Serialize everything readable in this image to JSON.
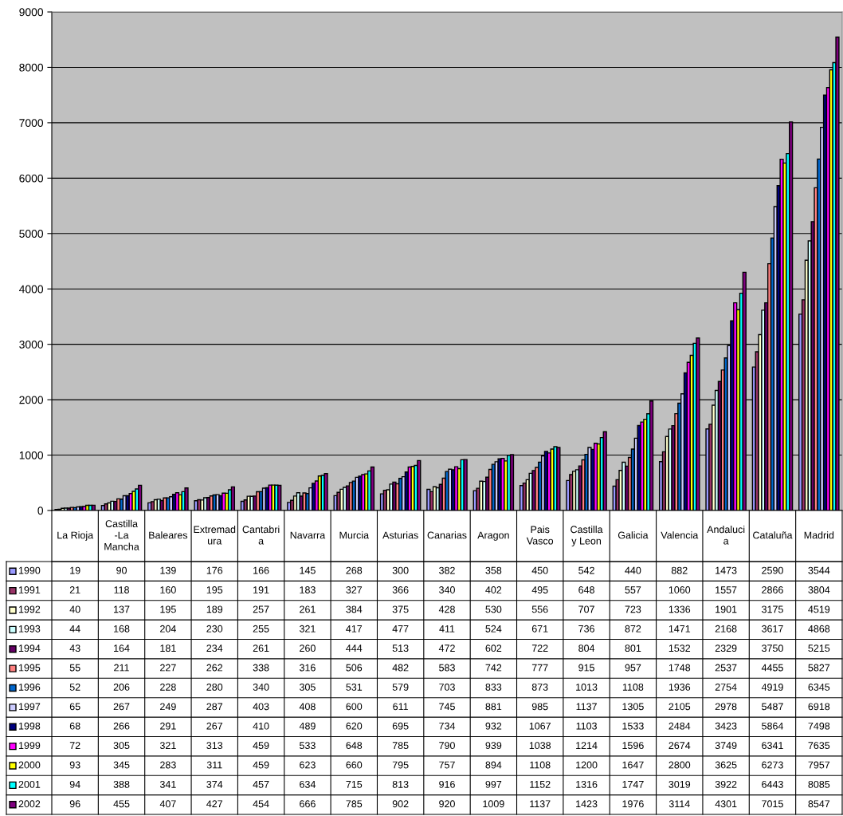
{
  "chart_data": {
    "type": "bar",
    "categories": [
      "La Rioja",
      "Castilla-La Mancha",
      "Baleares",
      "Extremadura",
      "Cantabria",
      "Navarra",
      "Murcia",
      "Asturias",
      "Canarias",
      "Aragon",
      "Pais Vasco",
      "Castilla y Leon",
      "Galicia",
      "Valencia",
      "Andalucia",
      "Cataluña",
      "Madrid"
    ],
    "series": [
      {
        "name": "1990",
        "color": "#9999ff",
        "values": [
          19,
          90,
          139,
          176,
          166,
          145,
          268,
          300,
          382,
          358,
          450,
          542,
          440,
          882,
          1473,
          2590,
          3544
        ]
      },
      {
        "name": "1991",
        "color": "#993366",
        "values": [
          21,
          118,
          160,
          195,
          191,
          183,
          327,
          366,
          340,
          402,
          495,
          648,
          557,
          1060,
          1557,
          2866,
          3804
        ]
      },
      {
        "name": "1992",
        "color": "#ffffcc",
        "values": [
          40,
          137,
          195,
          189,
          257,
          261,
          384,
          375,
          428,
          530,
          556,
          707,
          723,
          1336,
          1901,
          3175,
          4519
        ]
      },
      {
        "name": "1993",
        "color": "#ccffff",
        "values": [
          44,
          168,
          204,
          230,
          255,
          321,
          417,
          477,
          411,
          524,
          671,
          736,
          872,
          1471,
          2168,
          3617,
          4868
        ]
      },
      {
        "name": "1994",
        "color": "#660066",
        "values": [
          43,
          164,
          181,
          234,
          261,
          260,
          444,
          513,
          472,
          602,
          722,
          804,
          801,
          1532,
          2329,
          3750,
          5215
        ]
      },
      {
        "name": "1995",
        "color": "#ff8080",
        "values": [
          55,
          211,
          227,
          262,
          338,
          316,
          506,
          482,
          583,
          742,
          777,
          915,
          957,
          1748,
          2537,
          4455,
          5827
        ]
      },
      {
        "name": "1996",
        "color": "#0066cc",
        "values": [
          52,
          206,
          228,
          280,
          340,
          305,
          531,
          579,
          703,
          833,
          873,
          1013,
          1108,
          1936,
          2754,
          4919,
          6345
        ]
      },
      {
        "name": "1997",
        "color": "#ccccff",
        "values": [
          65,
          267,
          249,
          287,
          403,
          408,
          600,
          611,
          745,
          881,
          985,
          1137,
          1305,
          2105,
          2978,
          5487,
          6918
        ]
      },
      {
        "name": "1998",
        "color": "#000080",
        "values": [
          68,
          266,
          291,
          267,
          410,
          489,
          620,
          695,
          734,
          932,
          1067,
          1103,
          1533,
          2484,
          3423,
          5864,
          7498
        ]
      },
      {
        "name": "1999",
        "color": "#ff00ff",
        "values": [
          72,
          305,
          321,
          313,
          459,
          533,
          648,
          785,
          790,
          939,
          1038,
          1214,
          1596,
          2674,
          3749,
          6341,
          7635
        ]
      },
      {
        "name": "2000",
        "color": "#ffff00",
        "values": [
          93,
          345,
          283,
          311,
          459,
          623,
          660,
          795,
          757,
          894,
          1108,
          1200,
          1647,
          2800,
          3625,
          6273,
          7957
        ]
      },
      {
        "name": "2001",
        "color": "#00ffff",
        "values": [
          94,
          388,
          341,
          374,
          457,
          634,
          715,
          813,
          916,
          997,
          1152,
          1316,
          1747,
          3019,
          3922,
          6443,
          8085
        ]
      },
      {
        "name": "2002",
        "color": "#800080",
        "values": [
          96,
          455,
          407,
          427,
          454,
          666,
          785,
          902,
          920,
          1009,
          1137,
          1423,
          1976,
          3114,
          4301,
          7015,
          8547
        ]
      }
    ],
    "ylim": [
      0,
      9000
    ],
    "yticks": [
      0,
      1000,
      2000,
      3000,
      4000,
      5000,
      6000,
      7000,
      8000,
      9000
    ],
    "grid": "y",
    "legend": "bottom",
    "data_labels": true
  }
}
